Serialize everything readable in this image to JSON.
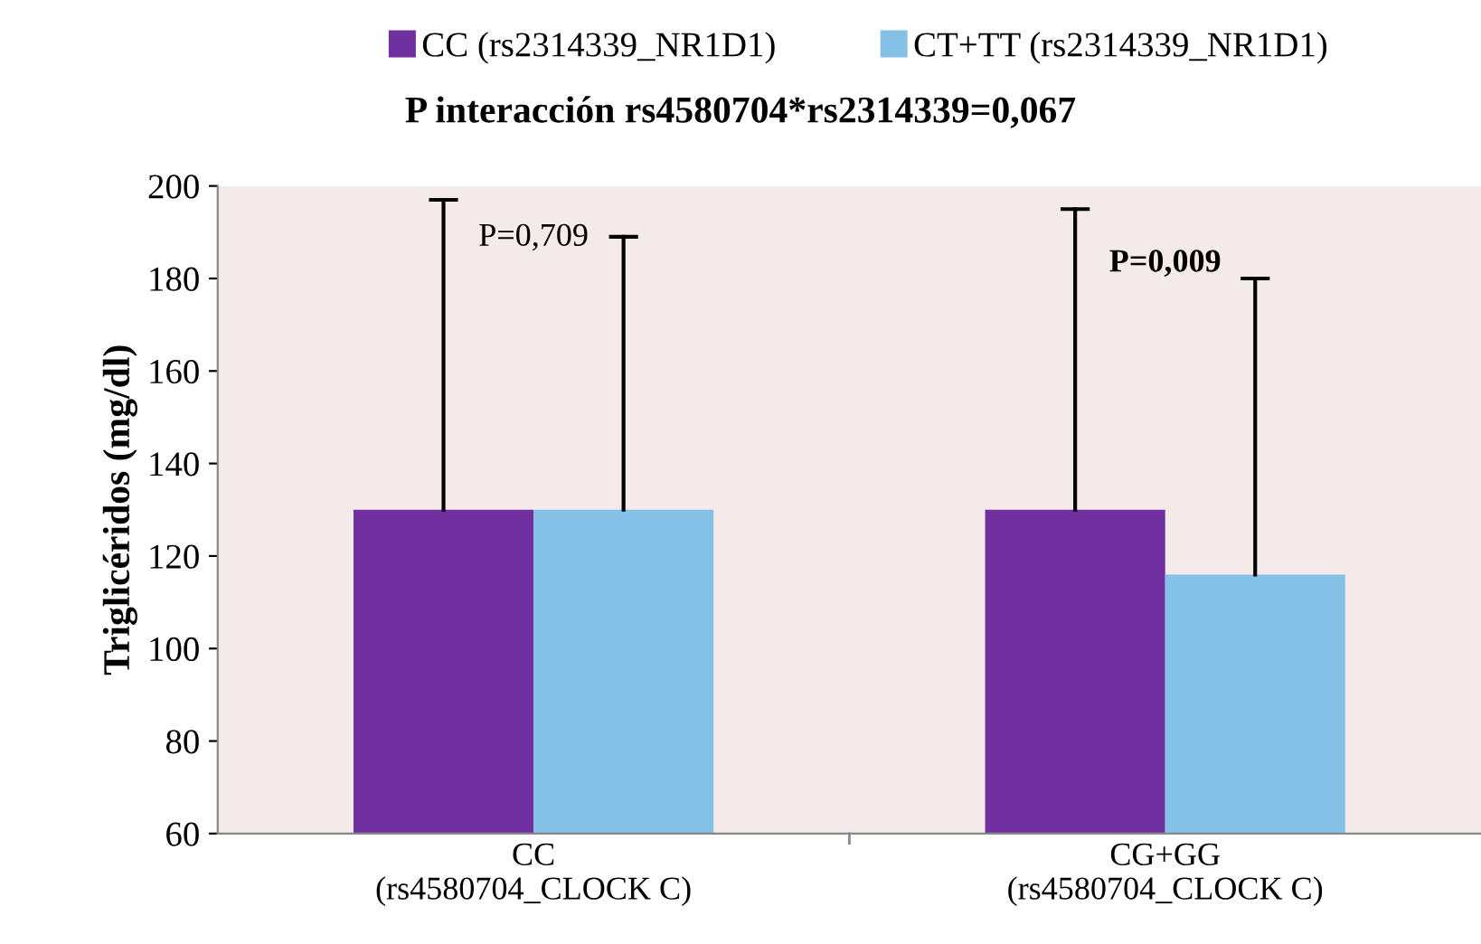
{
  "chart_data": {
    "type": "bar",
    "title": "P interacción rs4580704*rs2314339=0,067",
    "ylabel": "Triglicéridos (mg/dl)",
    "categories": [
      "CC\n(rs4580704_CLOCK C)",
      "CG+GG\n(rs4580704_CLOCK C)"
    ],
    "series": [
      {
        "name": "CC (rs2314339_NR1D1)",
        "color": "#7030a0",
        "values": [
          130,
          130
        ],
        "errors": [
          [
            130,
            197
          ],
          [
            130,
            195
          ]
        ]
      },
      {
        "name": "CT+TT (rs2314339_NR1D1)",
        "color": "#85c0e6",
        "values": [
          130,
          116
        ],
        "errors": [
          [
            130,
            189
          ],
          [
            116,
            180
          ]
        ]
      }
    ],
    "annotations": [
      "P=0,709",
      "P=0,009"
    ],
    "ylim": [
      60,
      200
    ],
    "yticks": [
      60,
      80,
      100,
      120,
      140,
      160,
      180,
      200
    ],
    "legend": "top",
    "grid": false
  }
}
